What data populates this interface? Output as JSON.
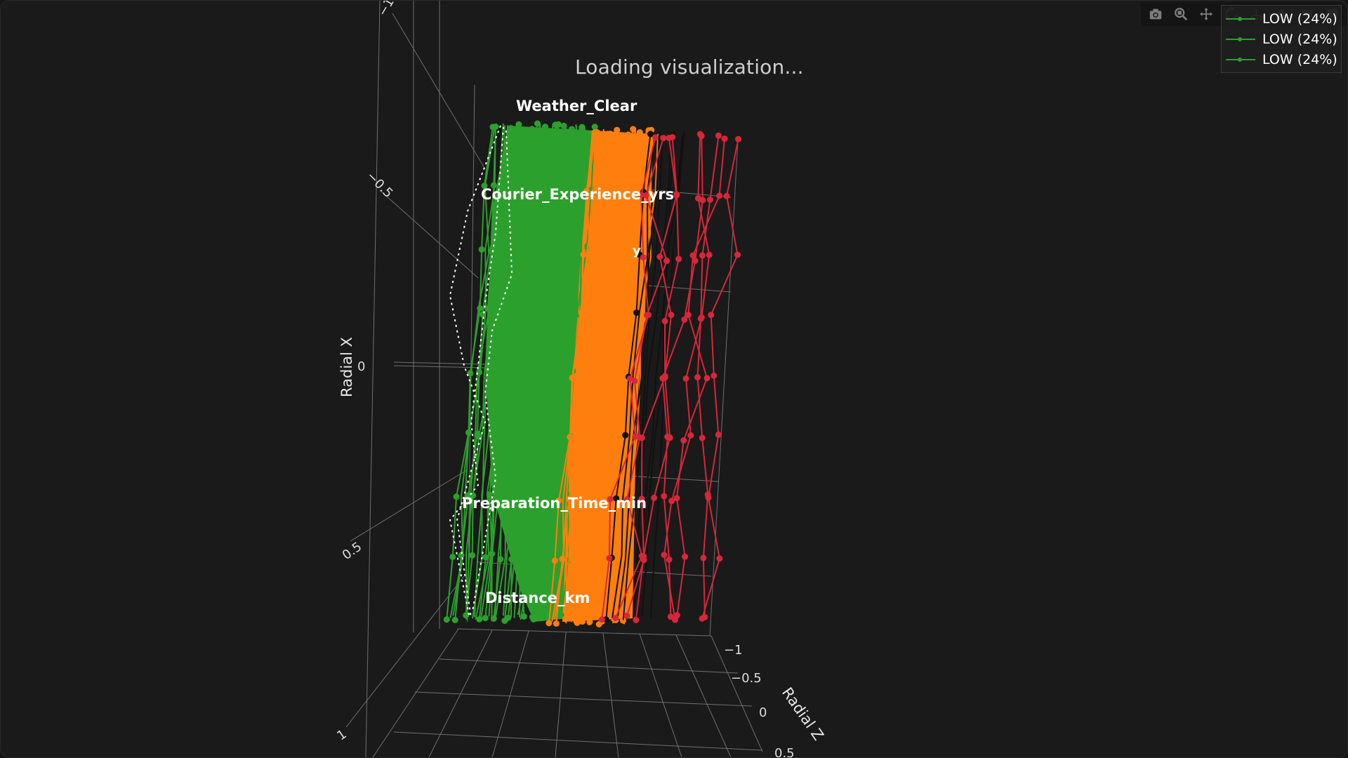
{
  "status": {
    "loading_text": "Loading visualization..."
  },
  "modebar": {
    "icons": [
      "camera-icon",
      "zoom-icon",
      "pan-icon",
      "orbit-rotation-icon",
      "turntable-rotation-icon",
      "reset-camera-icon",
      "hover-icon",
      "plotly-logo-icon"
    ]
  },
  "legend": {
    "items": [
      {
        "label": "LOW (24%)",
        "color": "#2ca02c"
      },
      {
        "label": "LOW (24%)",
        "color": "#2ca02c"
      },
      {
        "label": "LOW (24%)",
        "color": "#2ca02c"
      }
    ]
  },
  "chart_data": {
    "type": "scatter3d",
    "axes": {
      "x": {
        "title": "Radial X",
        "ticks": [
          "−1",
          "−0.5",
          "0",
          "0.5",
          "1"
        ],
        "range": [
          -1,
          1
        ]
      },
      "y": {
        "title": "",
        "ticks": []
      },
      "z": {
        "title": "Radial Z",
        "ticks": [
          "−1",
          "−0.5",
          "0",
          "0.5"
        ],
        "range": [
          -1,
          0.5
        ]
      }
    },
    "feature_labels": [
      "Weather_Clear",
      "Courier_Experience_yrs",
      "Preparation_Time_min",
      "Distance_km",
      "y"
    ],
    "series": [
      {
        "name": "LOW (24%)",
        "color": "#2ca02c"
      },
      {
        "color": "#ff7f0e"
      },
      {
        "color": "#d62739"
      }
    ],
    "colors": {
      "background": "#1a1a1a",
      "grid": "#7a7a7a",
      "low": "#2ca02c",
      "medium": "#ff7f0e",
      "high": "#d62739"
    }
  }
}
